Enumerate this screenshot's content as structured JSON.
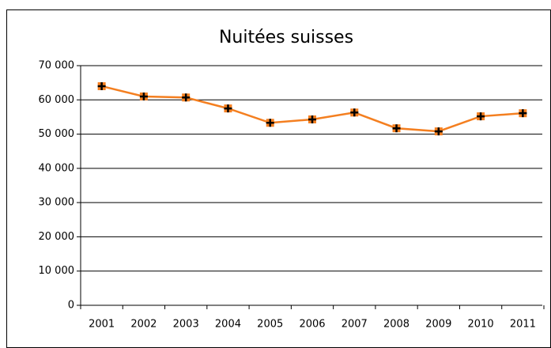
{
  "chart_data": {
    "type": "line",
    "title": "Nuitées suisses",
    "categories": [
      "2001",
      "2002",
      "2003",
      "2004",
      "2005",
      "2006",
      "2007",
      "2008",
      "2009",
      "2010",
      "2011"
    ],
    "series": [
      {
        "name": "Nuitées suisses",
        "color": "#f47f20",
        "values": [
          64000,
          61000,
          60700,
          57500,
          53300,
          54300,
          56300,
          51700,
          50800,
          55200,
          56100
        ]
      }
    ],
    "ylim": [
      0,
      70000
    ],
    "yticks": [
      {
        "value": 0,
        "label": "0"
      },
      {
        "value": 10000,
        "label": "10 000"
      },
      {
        "value": 20000,
        "label": "20 000"
      },
      {
        "value": 30000,
        "label": "30 000"
      },
      {
        "value": 40000,
        "label": "40 000"
      },
      {
        "value": 50000,
        "label": "50 000"
      },
      {
        "value": 60000,
        "label": "60 000"
      },
      {
        "value": 70000,
        "label": "70 000"
      }
    ],
    "grid": true
  }
}
